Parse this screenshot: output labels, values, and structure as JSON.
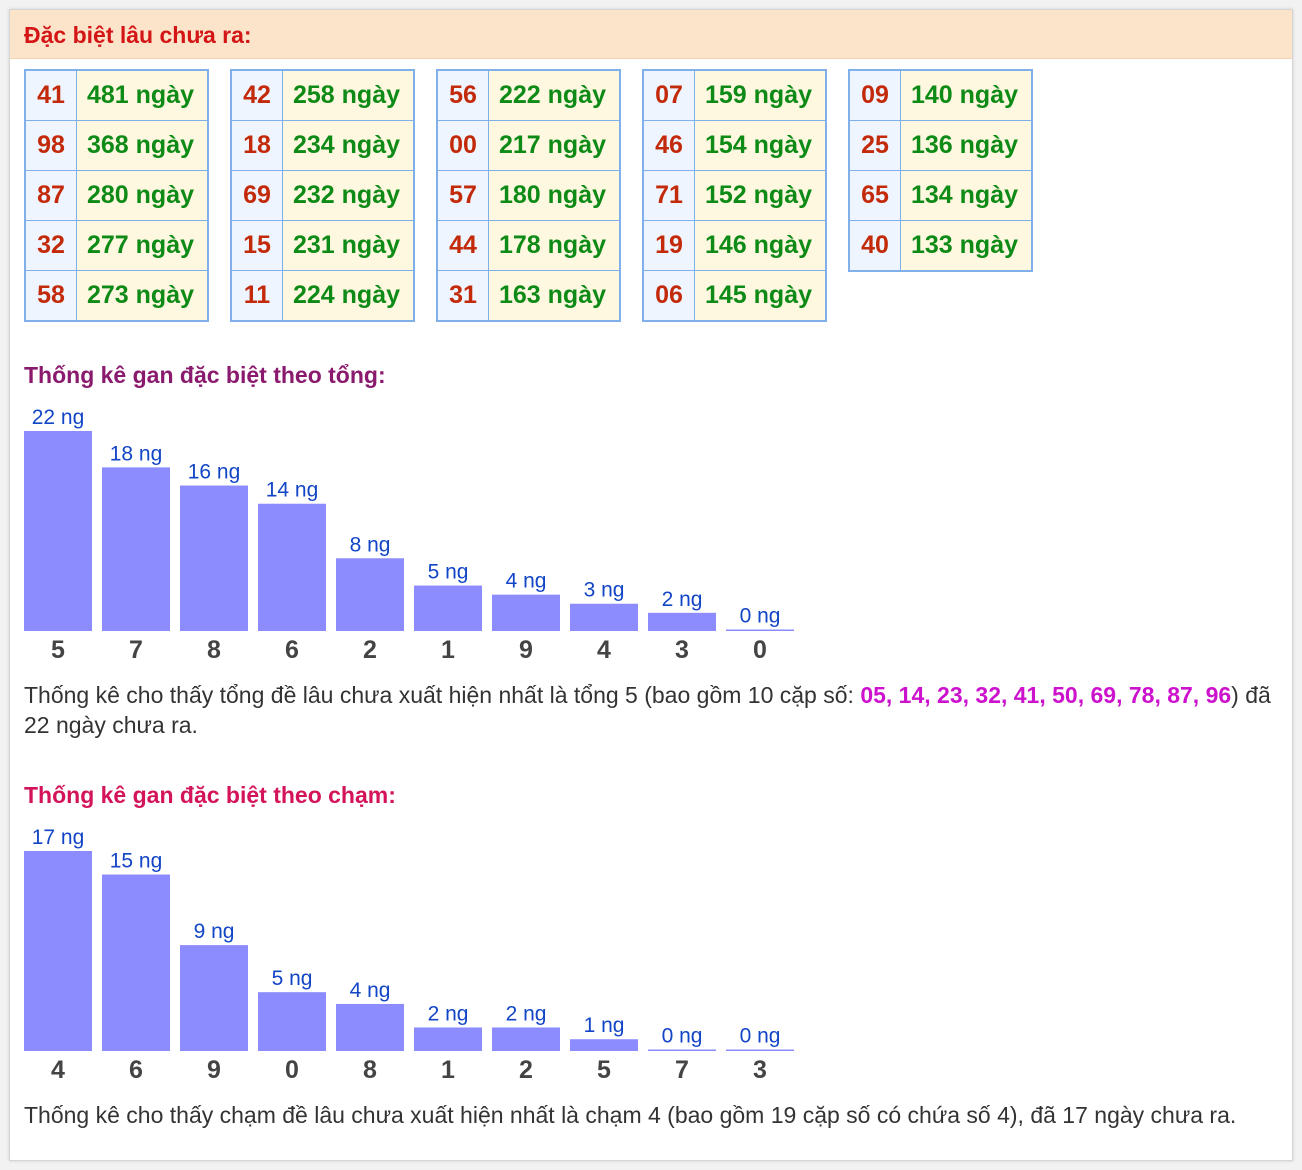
{
  "header": {
    "title": "Đặc biệt lâu chưa ra:"
  },
  "tables": [
    [
      {
        "num": "41",
        "days": "481 ngày"
      },
      {
        "num": "98",
        "days": "368 ngày"
      },
      {
        "num": "87",
        "days": "280 ngày"
      },
      {
        "num": "32",
        "days": "277 ngày"
      },
      {
        "num": "58",
        "days": "273 ngày"
      }
    ],
    [
      {
        "num": "42",
        "days": "258 ngày"
      },
      {
        "num": "18",
        "days": "234 ngày"
      },
      {
        "num": "69",
        "days": "232 ngày"
      },
      {
        "num": "15",
        "days": "231 ngày"
      },
      {
        "num": "11",
        "days": "224 ngày"
      }
    ],
    [
      {
        "num": "56",
        "days": "222 ngày"
      },
      {
        "num": "00",
        "days": "217 ngày"
      },
      {
        "num": "57",
        "days": "180 ngày"
      },
      {
        "num": "44",
        "days": "178 ngày"
      },
      {
        "num": "31",
        "days": "163 ngày"
      }
    ],
    [
      {
        "num": "07",
        "days": "159 ngày"
      },
      {
        "num": "46",
        "days": "154 ngày"
      },
      {
        "num": "71",
        "days": "152 ngày"
      },
      {
        "num": "19",
        "days": "146 ngày"
      },
      {
        "num": "06",
        "days": "145 ngày"
      }
    ],
    [
      {
        "num": "09",
        "days": "140 ngày"
      },
      {
        "num": "25",
        "days": "136 ngày"
      },
      {
        "num": "65",
        "days": "134 ngày"
      },
      {
        "num": "40",
        "days": "133 ngày"
      }
    ]
  ],
  "sections": {
    "tong": {
      "title": "Thống kê gan đặc biệt theo tổng:",
      "title_color": "#8a1a6e",
      "note": {
        "prefix": "Thống kê cho thấy tổng đề lâu chưa xuất hiện nhất là tổng 5 (bao gồm 10 cặp số: ",
        "highlight": "05, 14, 23, 32, 41, 50, 69, 78, 87, 96",
        "suffix": ") đã 22 ngày chưa ra."
      }
    },
    "cham": {
      "title": "Thống kê gan đặc biệt theo chạm:",
      "title_color": "#d4145a",
      "note": {
        "text": "Thống kê cho thấy chạm đề lâu chưa xuất hiện nhất là chạm 4 (bao gồm 19 cặp số có chứa số 4), đã 17 ngày chưa ra."
      }
    }
  },
  "colors": {
    "bar": "#8c8cff",
    "value_label": "#1346c6",
    "day_text": "#0e8a16",
    "num_text": "#c22a0a",
    "highlight": "#cc12cc"
  },
  "chart_data": [
    {
      "type": "bar",
      "title": "Thống kê gan đặc biệt theo tổng:",
      "categories": [
        "5",
        "7",
        "8",
        "6",
        "2",
        "1",
        "9",
        "4",
        "3",
        "0"
      ],
      "values": [
        22,
        18,
        16,
        14,
        8,
        5,
        4,
        3,
        2,
        0
      ],
      "value_labels": [
        "22 ng",
        "18 ng",
        "16 ng",
        "14 ng",
        "8 ng",
        "5 ng",
        "4 ng",
        "3 ng",
        "2 ng",
        "0 ng"
      ],
      "ylim": [
        0,
        22
      ],
      "grid": false
    },
    {
      "type": "bar",
      "title": "Thống kê gan đặc biệt theo chạm:",
      "categories": [
        "4",
        "6",
        "9",
        "0",
        "8",
        "1",
        "2",
        "5",
        "7",
        "3"
      ],
      "values": [
        17,
        15,
        9,
        5,
        4,
        2,
        2,
        1,
        0,
        0
      ],
      "value_labels": [
        "17 ng",
        "15 ng",
        "9 ng",
        "5 ng",
        "4 ng",
        "2 ng",
        "2 ng",
        "1 ng",
        "0 ng",
        "0 ng"
      ],
      "ylim": [
        0,
        17
      ],
      "grid": false
    }
  ]
}
